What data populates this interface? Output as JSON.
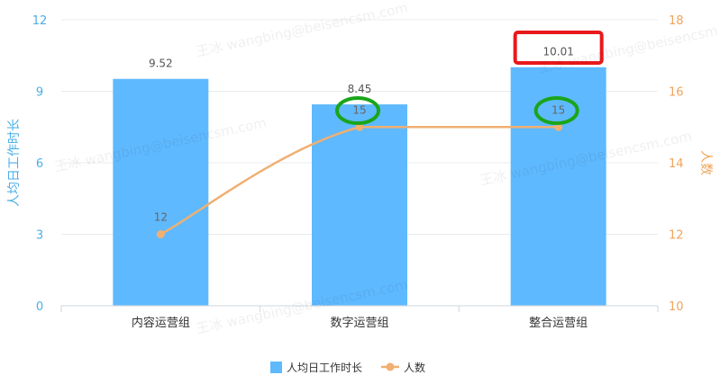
{
  "chart_data": {
    "type": "bar",
    "categories": [
      "内容运营组",
      "数字运营组",
      "整合运营组"
    ],
    "y_left": {
      "label": "人均日工作时长",
      "ticks": [
        "0",
        "3",
        "6",
        "9",
        "12"
      ],
      "range": [
        0,
        12
      ]
    },
    "y_right": {
      "label": "人数",
      "ticks": [
        "10",
        "12",
        "14",
        "16",
        "18"
      ],
      "range": [
        10,
        18
      ]
    },
    "series": [
      {
        "name": "人均日工作时长",
        "type": "bar",
        "axis": "left",
        "values": [
          9.52,
          8.45,
          10.01
        ],
        "labels": [
          "9.52",
          "8.45",
          "10.01"
        ]
      },
      {
        "name": "人数",
        "type": "line",
        "axis": "right",
        "values": [
          12,
          15,
          15
        ],
        "labels": [
          "12",
          "15",
          "15"
        ]
      }
    ],
    "legend": {
      "position": "bottom-center",
      "items": [
        "人均日工作时长",
        "人数"
      ]
    },
    "annotations": [
      {
        "type": "rectangle",
        "target": "整合运营组 人均日工作时长",
        "color": "#e8191b"
      },
      {
        "type": "ellipse",
        "target": "数字运营组 人数",
        "color": "#1aa51a"
      },
      {
        "type": "ellipse",
        "target": "整合运营组 人数",
        "color": "#1aa51a"
      }
    ],
    "colors": {
      "bar": "#5fb9fe",
      "line": "#efb072",
      "left_axis": "#4aaee8",
      "right_axis": "#f0a45c",
      "grid": "#e8ecf0"
    },
    "grid": true
  },
  "watermark": {
    "text": "王冰 wangbing@beisencsm.com"
  }
}
